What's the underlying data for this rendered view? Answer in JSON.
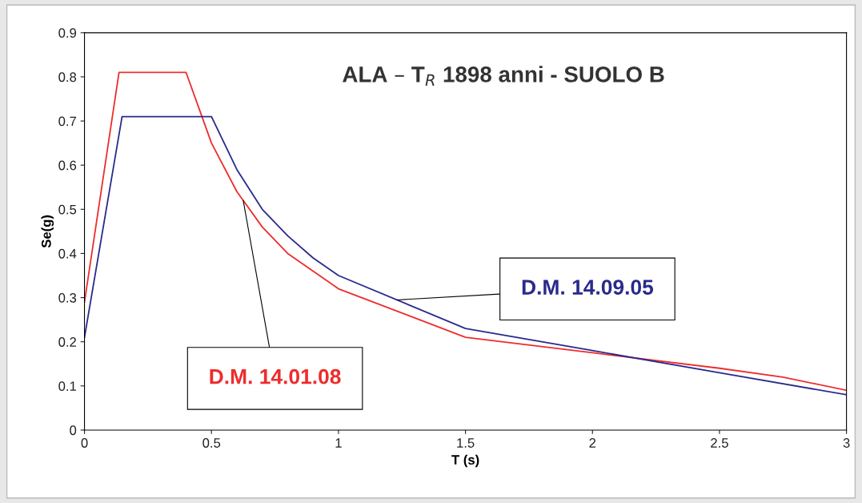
{
  "chart_data": {
    "type": "line",
    "title": "ALA – T$_{R}$ 1898 anni - SUOLO B",
    "xlabel": "T (s)",
    "ylabel": "Se(g)",
    "xlim": [
      0,
      3
    ],
    "ylim": [
      0,
      0.9
    ],
    "xticks": [
      0,
      0.5,
      1,
      1.5,
      2,
      2.5,
      3
    ],
    "yticks": [
      0,
      0.1,
      0.2,
      0.3,
      0.4,
      0.5,
      0.6,
      0.7,
      0.8,
      0.9
    ],
    "grid": false,
    "legend": false,
    "marker": "none",
    "line_style": "solid",
    "series": [
      {
        "name": "D.M. 14.01.08",
        "color": "#ee2c2c",
        "x": [
          0,
          0.136,
          0.4,
          0.5,
          0.6,
          0.7,
          0.8,
          1,
          1.5,
          2,
          2.5,
          2.75,
          3
        ],
        "values": [
          0.29,
          0.81,
          0.81,
          0.65,
          0.54,
          0.46,
          0.4,
          0.32,
          0.21,
          0.175,
          0.14,
          0.12,
          0.09
        ]
      },
      {
        "name": "D.M. 14.09.05",
        "color": "#2a2a8c",
        "x": [
          0,
          0.148,
          0.5,
          0.6,
          0.7,
          0.8,
          0.9,
          1,
          1.5,
          2,
          2.5,
          3
        ],
        "values": [
          0.21,
          0.71,
          0.71,
          0.59,
          0.5,
          0.44,
          0.39,
          0.35,
          0.23,
          0.18,
          0.13,
          0.08
        ]
      }
    ]
  }
}
